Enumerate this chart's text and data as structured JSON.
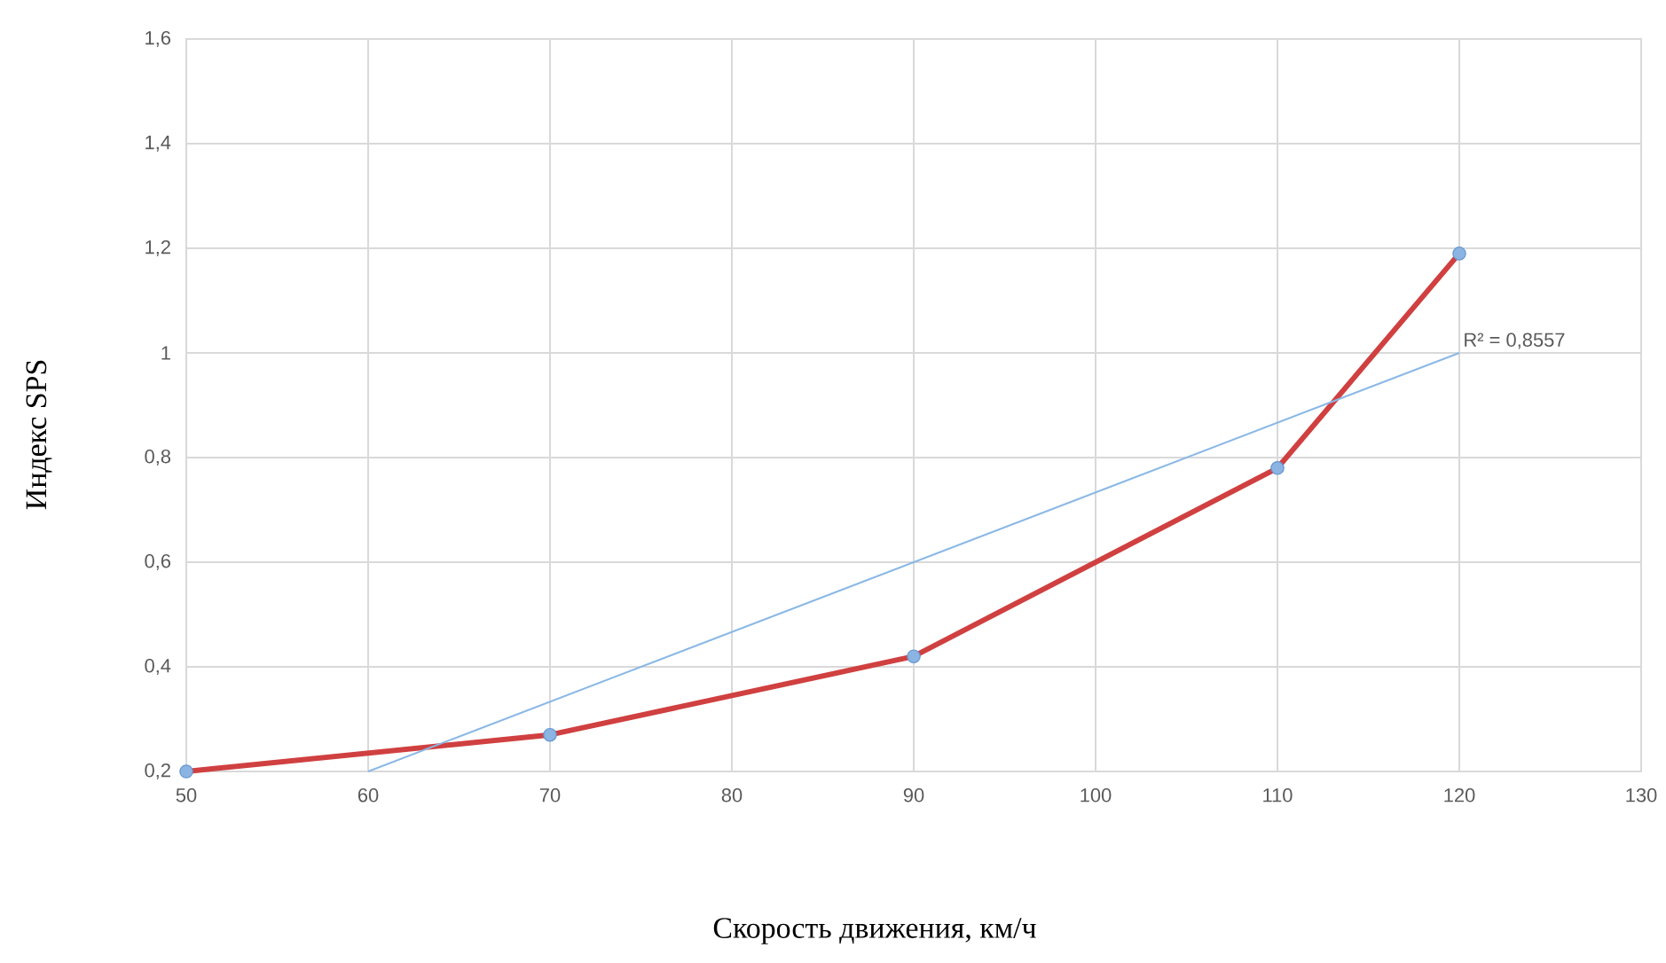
{
  "chart_data": {
    "type": "line",
    "xlabel": "Скорость движения, км/ч",
    "ylabel": "Индекс SPS",
    "x": [
      50,
      70,
      90,
      110,
      120
    ],
    "series": [
      {
        "color": "#d04040",
        "values": [
          0.2,
          0.27,
          0.42,
          0.78,
          1.19
        ]
      },
      {
        "type": "line",
        "color": "#8ab8e6",
        "marker": "none",
        "x": [
          60,
          120
        ],
        "values": [
          0.2,
          1.0
        ]
      }
    ],
    "annotations": [
      {
        "text": "R² = 0,8557",
        "x": 120,
        "y": 1.0
      }
    ],
    "xlim": [
      50,
      130
    ],
    "xticks": [
      50,
      60,
      70,
      80,
      90,
      100,
      110,
      120,
      130
    ],
    "ylim": [
      0.2,
      1.6
    ],
    "yticks": [
      {
        "value": 0.2,
        "label": "0,2"
      },
      {
        "value": 0.4,
        "label": "0,4"
      },
      {
        "value": 0.6,
        "label": "0,6"
      },
      {
        "value": 0.8,
        "label": "0,8"
      },
      1,
      {
        "value": 1.2,
        "label": "1,2"
      },
      {
        "value": 1.4,
        "label": "1,4"
      },
      {
        "value": 1.6,
        "label": "1,6"
      }
    ],
    "grid": true,
    "marker": "circle",
    "line_style": "solid"
  }
}
